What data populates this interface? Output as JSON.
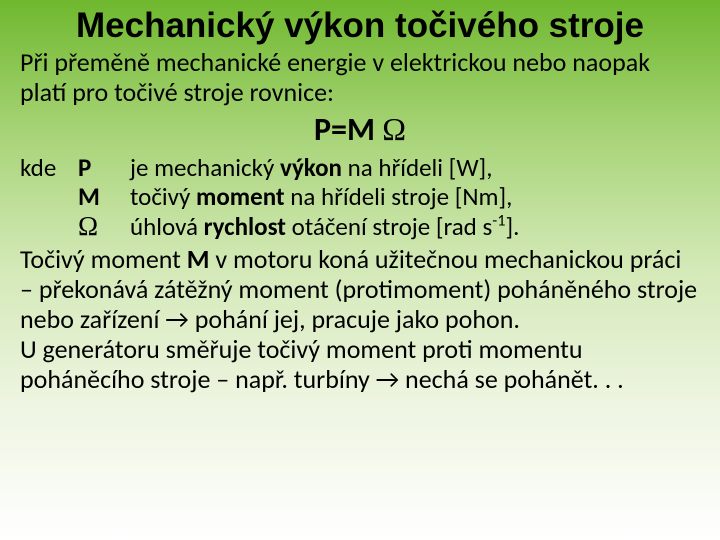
{
  "title": "Mechanický výkon točivého stroje",
  "intro": "Při přeměně mechanické energie v elektrickou nebo naopak platí pro točivé stroje rovnice:",
  "equation": {
    "lhs": "P=M ",
    "omega": "Ω"
  },
  "defs": {
    "kde": "kde",
    "rows": [
      {
        "sym": "P",
        "pre": "je mechanický ",
        "bold": "výkon",
        "post": " na hřídeli [W],"
      },
      {
        "sym": "M",
        "pre": "točivý ",
        "bold": "moment",
        "post": " na hřídeli stroje [Nm],"
      },
      {
        "sym": "Ω",
        "pre": "úhlová ",
        "bold": "rychlost",
        "post_a": " otáčení stroje [rad s",
        "sup": "-1",
        "post_b": "]."
      }
    ]
  },
  "para1": {
    "a": "Točivý moment ",
    "b": "M",
    "c": " v motoru koná užitečnou mechanickou práci – překonává zátěžný moment (protimoment) poháněného stroje nebo zařízení → pohání jej, pracuje jako pohon."
  },
  "para2": "U generátoru směřuje točivý moment proti momentu poháněcího stroje – např. turbíny → nechá se pohánět. . ."
}
